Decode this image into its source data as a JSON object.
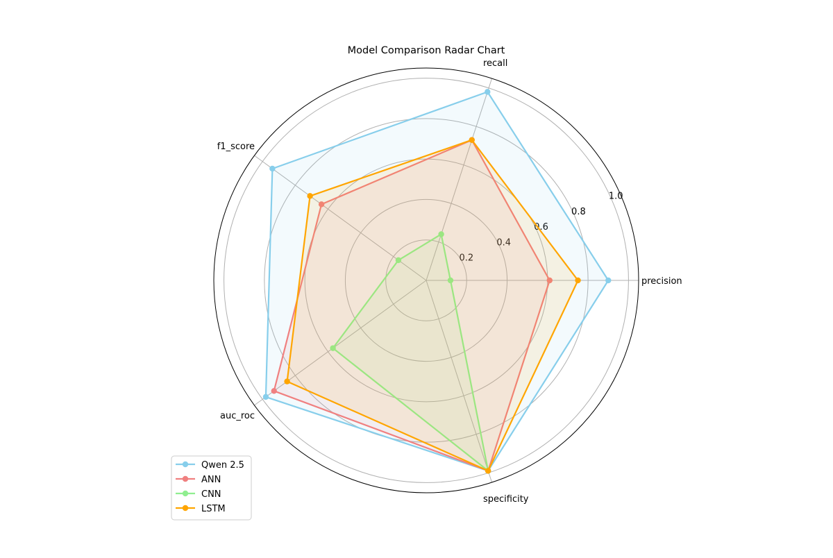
{
  "chart_data": {
    "type": "radar",
    "title": "Model Comparison Radar Chart",
    "axes": [
      "precision",
      "recall",
      "f1_score",
      "auc_roc",
      "specificity"
    ],
    "rlim": [
      0,
      1.05
    ],
    "rticks": [
      0.2,
      0.4,
      0.6,
      0.8,
      1.0
    ],
    "rtick_labels": [
      "0.2",
      "0.4",
      "0.6",
      "0.8",
      "1.0"
    ],
    "grid": true,
    "legend_position": "bottom-left",
    "series": [
      {
        "name": "Qwen 2.5",
        "color": "#87CEEB",
        "values": [
          0.9,
          0.98,
          0.94,
          0.98,
          0.99
        ]
      },
      {
        "name": "ANN",
        "color": "#F08080",
        "values": [
          0.61,
          0.73,
          0.64,
          0.93,
          0.99
        ]
      },
      {
        "name": "CNN",
        "color": "#90EE90",
        "values": [
          0.12,
          0.24,
          0.17,
          0.57,
          0.99
        ]
      },
      {
        "name": "LSTM",
        "color": "#FFA500",
        "values": [
          0.75,
          0.73,
          0.71,
          0.85,
          0.99
        ]
      }
    ]
  }
}
